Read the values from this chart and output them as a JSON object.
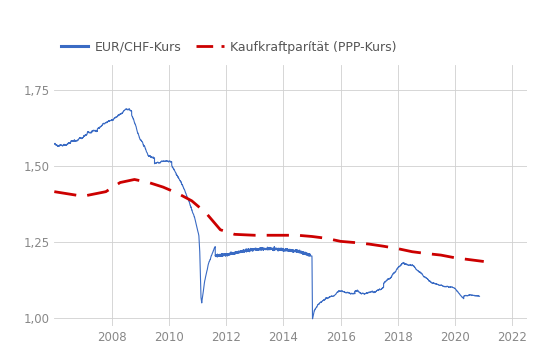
{
  "legend_eur_chf": "EUR/CHF-Kurs",
  "legend_ppp": "Kaufkraftparítät (PPP-Kurs)",
  "eur_chf_color": "#3a6bc4",
  "ppp_color": "#cc0000",
  "background_color": "#ffffff",
  "grid_color": "#d0d0d0",
  "xlim": [
    2006.0,
    2022.5
  ],
  "ylim": [
    0.975,
    1.83
  ],
  "yticks": [
    1.0,
    1.25,
    1.5,
    1.75
  ],
  "xticks": [
    2008,
    2010,
    2012,
    2014,
    2016,
    2018,
    2020,
    2022
  ],
  "ppp_x": [
    2006.0,
    2007.0,
    2007.8,
    2008.3,
    2008.8,
    2009.3,
    2009.8,
    2010.3,
    2010.8,
    2011.3,
    2011.8,
    2012.3,
    2013.0,
    2013.8,
    2014.5,
    2015.0,
    2015.5,
    2016.0,
    2016.5,
    2017.0,
    2017.5,
    2018.0,
    2018.5,
    2019.0,
    2019.5,
    2020.0,
    2020.5,
    2021.0
  ],
  "ppp_y": [
    1.415,
    1.4,
    1.415,
    1.445,
    1.455,
    1.445,
    1.43,
    1.41,
    1.385,
    1.345,
    1.29,
    1.275,
    1.272,
    1.272,
    1.272,
    1.268,
    1.262,
    1.252,
    1.248,
    1.243,
    1.236,
    1.228,
    1.218,
    1.212,
    1.207,
    1.198,
    1.192,
    1.186
  ]
}
